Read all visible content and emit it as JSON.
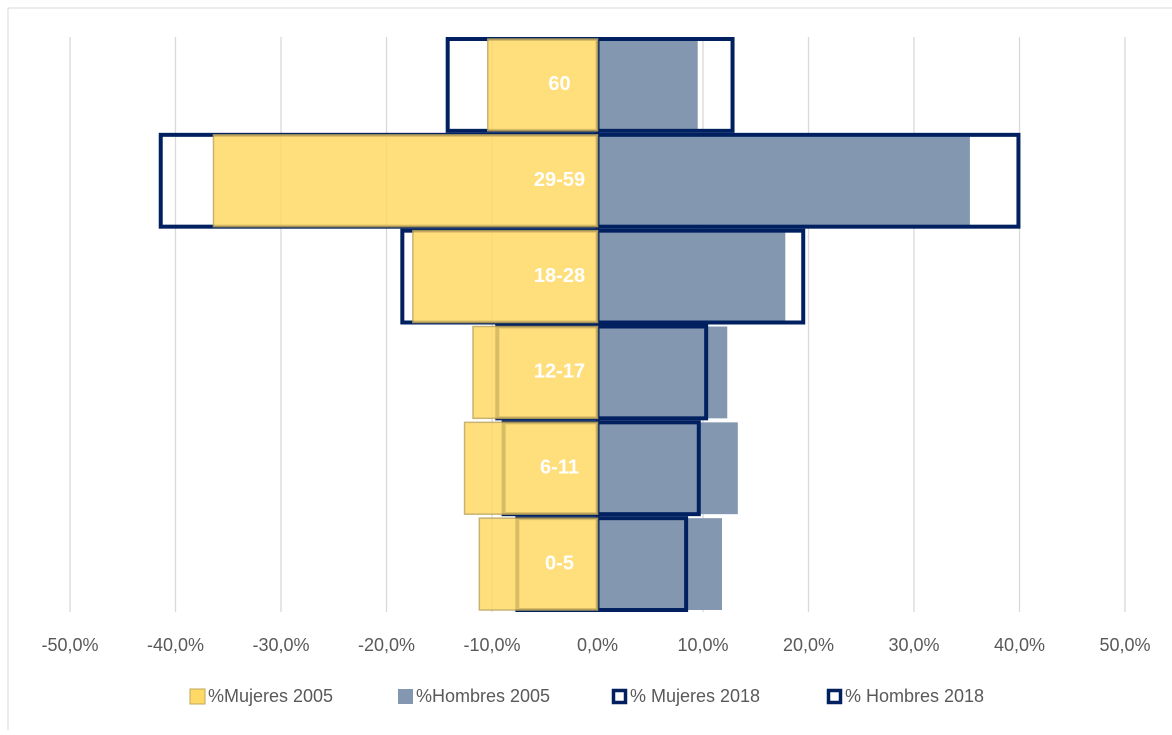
{
  "chart_data": {
    "type": "pyramid",
    "categories": [
      "0-5",
      "6-11",
      "12-17",
      "18-28",
      "29-59",
      "60"
    ],
    "series": [
      {
        "name": "%Mujeres 2005",
        "color": "#FFD966",
        "style": "filled",
        "values": [
          -11.2,
          -12.6,
          -11.8,
          -17.5,
          -36.4,
          -10.4
        ]
      },
      {
        "name": "%Hombres 2005",
        "color": "#8497B0",
        "style": "filled",
        "values": [
          11.8,
          13.3,
          12.3,
          17.8,
          35.3,
          9.5
        ]
      },
      {
        "name": "% Mujeres 2018",
        "color": "#002060",
        "style": "outline",
        "values": [
          -7.6,
          -8.9,
          -9.5,
          -18.5,
          -41.4,
          -14.2
        ]
      },
      {
        "name": "% Hombres 2018",
        "color": "#002060",
        "style": "outline",
        "values": [
          8.4,
          9.6,
          10.3,
          19.5,
          39.9,
          12.8
        ]
      }
    ],
    "xlim": [
      -50,
      50
    ],
    "xticks": [
      {
        "value": -50,
        "label": "-50,0%"
      },
      {
        "value": -40,
        "label": "-40,0%"
      },
      {
        "value": -30,
        "label": "-30,0%"
      },
      {
        "value": -20,
        "label": "-20,0%"
      },
      {
        "value": -10,
        "label": "-10,0%"
      },
      {
        "value": 0,
        "label": "0,0%"
      },
      {
        "value": 10,
        "label": "10,0%"
      },
      {
        "value": 20,
        "label": "20,0%"
      },
      {
        "value": 30,
        "label": "30,0%"
      },
      {
        "value": 40,
        "label": "40,0%"
      },
      {
        "value": 50,
        "label": "50,0%"
      }
    ],
    "grid": true,
    "legend": "bottom"
  }
}
